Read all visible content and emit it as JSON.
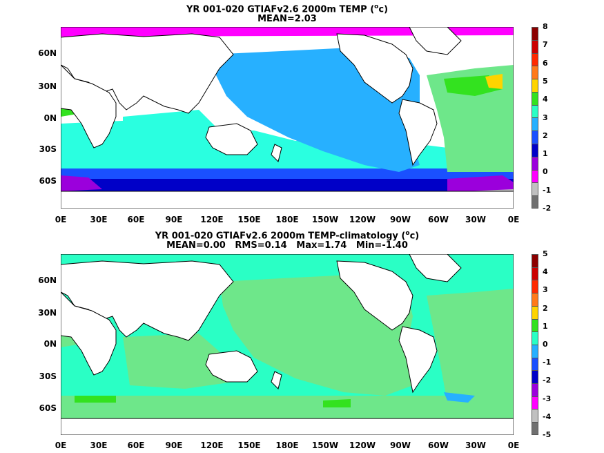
{
  "panel1": {
    "title_main": "YR 001-020 GTIAFv2.6 2000m TEMP (",
    "title_sup": "o",
    "title_end": "c)",
    "subtitle": "MEAN=2.03",
    "colorbar": {
      "labels": [
        "8",
        "7",
        "6",
        "5",
        "4",
        "3",
        "2",
        "1",
        "0",
        "-1",
        "-2"
      ],
      "colors": [
        "#8b0000",
        "#cc0000",
        "#ff2a00",
        "#ff7a1a",
        "#ffd400",
        "#33e21f",
        "#2affc5",
        "#27b0ff",
        "#1a50ff",
        "#0000c8",
        "#9b00dc",
        "#ff00ff",
        "#c0c0c0",
        "#707070"
      ]
    }
  },
  "panel2": {
    "title_main": "YR 001-020 GTIAFv2.6 2000m TEMP-climatology (",
    "title_sup": "o",
    "title_end": "c)",
    "subtitle": "MEAN=0.00   RMS=0.14   Max=1.74   Min=-1.40",
    "colorbar": {
      "labels": [
        "5",
        "4",
        "3",
        "2",
        "1",
        "0",
        "-1",
        "-2",
        "-3",
        "-4",
        "-5"
      ],
      "colors": [
        "#8b0000",
        "#cc0000",
        "#ff2a00",
        "#ff7a1a",
        "#ffd400",
        "#33e21f",
        "#2affc5",
        "#27b0ff",
        "#1a50ff",
        "#0000c8",
        "#9b00dc",
        "#ff00ff",
        "#c0c0c0",
        "#707070"
      ]
    }
  },
  "axes": {
    "lat_labels": [
      "60N",
      "30N",
      "0N",
      "30S",
      "60S"
    ],
    "lon_labels": [
      "0E",
      "30E",
      "60E",
      "90E",
      "120E",
      "150E",
      "180E",
      "150W",
      "120W",
      "90W",
      "60W",
      "30W",
      "0E"
    ]
  }
}
